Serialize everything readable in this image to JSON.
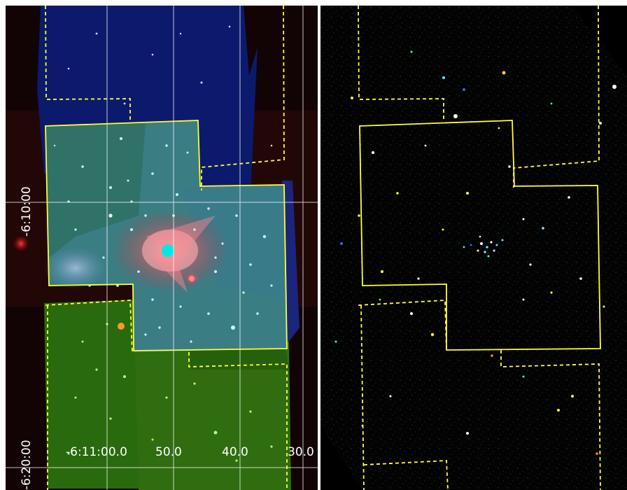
{
  "figure": {
    "left_panel": {
      "ra_labels": [
        "-6:11:00.0",
        "50.0",
        "40.0",
        "30.0"
      ],
      "dec_labels": [
        "-6:10:00",
        "-6:20:00"
      ]
    },
    "right_panel": {}
  },
  "colors": {
    "footprint_outline": "#ffff33",
    "grid_lines": "#ffffff",
    "separator": "#ffffff",
    "background": "#000000"
  }
}
